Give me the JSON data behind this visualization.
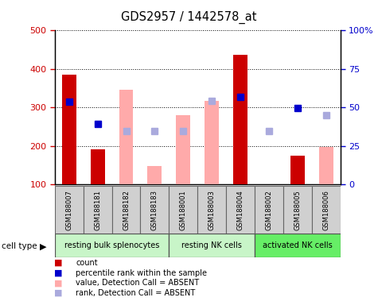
{
  "title": "GDS2957 / 1442578_at",
  "samples": [
    "GSM188007",
    "GSM188181",
    "GSM188182",
    "GSM188183",
    "GSM188001",
    "GSM188003",
    "GSM188004",
    "GSM188002",
    "GSM188005",
    "GSM188006"
  ],
  "cell_types": [
    {
      "label": "resting bulk splenocytes",
      "start": 0,
      "end": 4,
      "color": "#c8f5c8"
    },
    {
      "label": "resting NK cells",
      "start": 4,
      "end": 7,
      "color": "#c8f5c8"
    },
    {
      "label": "activated NK cells",
      "start": 7,
      "end": 10,
      "color": "#66ee66"
    }
  ],
  "count_values": [
    385,
    192,
    null,
    null,
    null,
    null,
    437,
    null,
    175,
    null
  ],
  "count_color": "#cc0000",
  "percentile_values": [
    315,
    258,
    null,
    null,
    null,
    null,
    328,
    null,
    298,
    null
  ],
  "percentile_color": "#0000cc",
  "absent_value_values": [
    null,
    null,
    347,
    148,
    280,
    318,
    null,
    null,
    null,
    198
  ],
  "absent_value_color": "#ffaaaa",
  "absent_rank_values": [
    null,
    null,
    238,
    238,
    238,
    318,
    null,
    238,
    null,
    280
  ],
  "absent_rank_color": "#aaaadd",
  "ylim": [
    100,
    500
  ],
  "yticks_left": [
    100,
    200,
    300,
    400,
    500
  ],
  "yticks_right_labels": [
    "0",
    "25",
    "50",
    "75",
    "100%"
  ],
  "yticks_right_positions": [
    100,
    200,
    300,
    400,
    500
  ],
  "bar_width": 0.5,
  "bg_color": "#ffffff",
  "plot_bg": "#ffffff",
  "left_label_color": "#cc0000",
  "right_label_color": "#0000cc",
  "sample_box_color": "#d0d0d0",
  "legend_items": [
    {
      "color": "#cc0000",
      "label": "count"
    },
    {
      "color": "#0000cc",
      "label": "percentile rank within the sample"
    },
    {
      "color": "#ffaaaa",
      "label": "value, Detection Call = ABSENT"
    },
    {
      "color": "#aaaadd",
      "label": "rank, Detection Call = ABSENT"
    }
  ]
}
